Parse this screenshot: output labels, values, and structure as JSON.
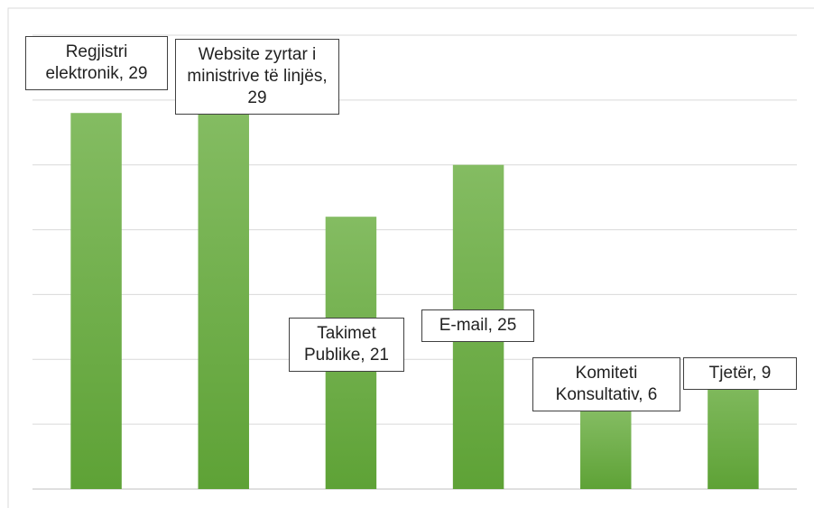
{
  "chart_data": {
    "type": "bar",
    "categories": [
      "Regjistri elektronik",
      "Website zyrtar i ministrive të linjës",
      "Takimet Publike",
      "E-mail",
      "Komiteti Konsultativ",
      "Tjetër"
    ],
    "values": [
      29,
      29,
      21,
      25,
      6,
      9
    ],
    "value_labels": [
      "Regjistri elektronik, 29",
      "Website zyrtar i ministrive të linjës, 29",
      "Takimet Publike, 21",
      "E-mail, 25",
      "Komiteti Konsultativ, 6",
      "Tjetër, 9"
    ],
    "color": "#70ad47",
    "ylim": [
      0,
      35
    ],
    "yticks": [
      0,
      5,
      10,
      15,
      20,
      25,
      30,
      35
    ],
    "grid": true
  }
}
